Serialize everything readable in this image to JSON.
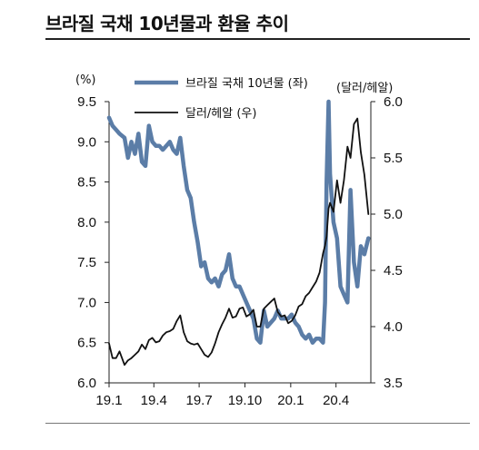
{
  "title": "브라질 국채 10년물과 환율 추이",
  "chart_data": {
    "type": "line",
    "left_axis": {
      "unit": "(%)",
      "min": 6.0,
      "max": 9.5,
      "ticks": [
        "9.5",
        "9.0",
        "8.5",
        "8.0",
        "7.5",
        "7.0",
        "6.5",
        "6.0"
      ]
    },
    "right_axis": {
      "unit": "(달러/헤알)",
      "min": 3.5,
      "max": 6.0,
      "ticks": [
        "6.0",
        "5.5",
        "5.0",
        "4.5",
        "4.0",
        "3.5"
      ]
    },
    "x_ticks": [
      "19.1",
      "19.4",
      "19.7",
      "19.10",
      "20.1",
      "20.4"
    ],
    "x_range": [
      "2019-01-01",
      "2020-06-10"
    ],
    "legend": [
      "브라질 국채 10년물 (좌)",
      "달러/헤알 (우)"
    ],
    "series": [
      {
        "name": "브라질 국채 10년물 (좌)",
        "axis": "left",
        "color": "#5b7da7",
        "points": [
          [
            "2019-01-01",
            9.3
          ],
          [
            "2019-01-08",
            9.2
          ],
          [
            "2019-01-15",
            9.15
          ],
          [
            "2019-01-22",
            9.1
          ],
          [
            "2019-02-01",
            9.05
          ],
          [
            "2019-02-08",
            8.8
          ],
          [
            "2019-02-15",
            9.0
          ],
          [
            "2019-02-22",
            8.85
          ],
          [
            "2019-03-01",
            9.1
          ],
          [
            "2019-03-08",
            8.75
          ],
          [
            "2019-03-15",
            8.7
          ],
          [
            "2019-03-22",
            9.2
          ],
          [
            "2019-03-29",
            9.0
          ],
          [
            "2019-04-05",
            8.95
          ],
          [
            "2019-04-12",
            8.95
          ],
          [
            "2019-04-19",
            8.9
          ],
          [
            "2019-04-26",
            8.95
          ],
          [
            "2019-05-03",
            9.0
          ],
          [
            "2019-05-10",
            8.9
          ],
          [
            "2019-05-17",
            8.85
          ],
          [
            "2019-05-24",
            9.05
          ],
          [
            "2019-05-31",
            8.7
          ],
          [
            "2019-06-07",
            8.4
          ],
          [
            "2019-06-14",
            8.3
          ],
          [
            "2019-06-21",
            8.0
          ],
          [
            "2019-06-28",
            7.75
          ],
          [
            "2019-07-05",
            7.45
          ],
          [
            "2019-07-12",
            7.5
          ],
          [
            "2019-07-19",
            7.3
          ],
          [
            "2019-07-26",
            7.25
          ],
          [
            "2019-08-02",
            7.3
          ],
          [
            "2019-08-09",
            7.2
          ],
          [
            "2019-08-16",
            7.35
          ],
          [
            "2019-08-23",
            7.4
          ],
          [
            "2019-08-30",
            7.6
          ],
          [
            "2019-09-06",
            7.3
          ],
          [
            "2019-09-13",
            7.2
          ],
          [
            "2019-09-20",
            7.2
          ],
          [
            "2019-09-27",
            7.1
          ],
          [
            "2019-10-04",
            7.0
          ],
          [
            "2019-10-11",
            6.9
          ],
          [
            "2019-10-18",
            6.8
          ],
          [
            "2019-10-25",
            6.55
          ],
          [
            "2019-11-01",
            6.5
          ],
          [
            "2019-11-08",
            6.9
          ],
          [
            "2019-11-15",
            6.7
          ],
          [
            "2019-11-22",
            6.75
          ],
          [
            "2019-11-29",
            6.8
          ],
          [
            "2019-12-06",
            6.9
          ],
          [
            "2019-12-13",
            6.8
          ],
          [
            "2019-12-20",
            6.8
          ],
          [
            "2019-12-27",
            6.8
          ],
          [
            "2020-01-03",
            6.85
          ],
          [
            "2020-01-10",
            6.75
          ],
          [
            "2020-01-17",
            6.7
          ],
          [
            "2020-01-24",
            6.6
          ],
          [
            "2020-01-31",
            6.55
          ],
          [
            "2020-02-07",
            6.6
          ],
          [
            "2020-02-14",
            6.5
          ],
          [
            "2020-02-21",
            6.55
          ],
          [
            "2020-02-28",
            6.55
          ],
          [
            "2020-03-06",
            6.5
          ],
          [
            "2020-03-10",
            7.0
          ],
          [
            "2020-03-13",
            8.5
          ],
          [
            "2020-03-17",
            9.5
          ],
          [
            "2020-03-20",
            8.6
          ],
          [
            "2020-03-27",
            8.0
          ],
          [
            "2020-04-03",
            7.8
          ],
          [
            "2020-04-10",
            7.2
          ],
          [
            "2020-04-17",
            7.1
          ],
          [
            "2020-04-24",
            7.0
          ],
          [
            "2020-04-30",
            8.4
          ],
          [
            "2020-05-07",
            7.5
          ],
          [
            "2020-05-14",
            7.2
          ],
          [
            "2020-05-21",
            7.7
          ],
          [
            "2020-05-28",
            7.6
          ],
          [
            "2020-06-05",
            7.8
          ]
        ]
      },
      {
        "name": "달러/헤알 (우)",
        "axis": "right",
        "color": "#111111",
        "points": [
          [
            "2019-01-01",
            3.85
          ],
          [
            "2019-01-08",
            3.72
          ],
          [
            "2019-01-15",
            3.72
          ],
          [
            "2019-01-22",
            3.78
          ],
          [
            "2019-02-01",
            3.66
          ],
          [
            "2019-02-08",
            3.7
          ],
          [
            "2019-02-15",
            3.72
          ],
          [
            "2019-02-22",
            3.75
          ],
          [
            "2019-03-01",
            3.78
          ],
          [
            "2019-03-08",
            3.84
          ],
          [
            "2019-03-15",
            3.8
          ],
          [
            "2019-03-22",
            3.88
          ],
          [
            "2019-03-29",
            3.9
          ],
          [
            "2019-04-05",
            3.86
          ],
          [
            "2019-04-12",
            3.87
          ],
          [
            "2019-04-19",
            3.92
          ],
          [
            "2019-04-26",
            3.95
          ],
          [
            "2019-05-03",
            3.96
          ],
          [
            "2019-05-10",
            3.98
          ],
          [
            "2019-05-17",
            4.05
          ],
          [
            "2019-05-24",
            4.1
          ],
          [
            "2019-05-31",
            3.95
          ],
          [
            "2019-06-07",
            3.87
          ],
          [
            "2019-06-14",
            3.85
          ],
          [
            "2019-06-21",
            3.84
          ],
          [
            "2019-06-28",
            3.85
          ],
          [
            "2019-07-05",
            3.8
          ],
          [
            "2019-07-12",
            3.75
          ],
          [
            "2019-07-19",
            3.73
          ],
          [
            "2019-07-26",
            3.77
          ],
          [
            "2019-08-02",
            3.85
          ],
          [
            "2019-08-09",
            3.95
          ],
          [
            "2019-08-16",
            4.02
          ],
          [
            "2019-08-23",
            4.08
          ],
          [
            "2019-08-30",
            4.16
          ],
          [
            "2019-09-06",
            4.08
          ],
          [
            "2019-09-13",
            4.09
          ],
          [
            "2019-09-20",
            4.16
          ],
          [
            "2019-09-27",
            4.17
          ],
          [
            "2019-10-04",
            4.09
          ],
          [
            "2019-10-11",
            4.11
          ],
          [
            "2019-10-18",
            4.15
          ],
          [
            "2019-10-25",
            4.0
          ],
          [
            "2019-11-01",
            4.0
          ],
          [
            "2019-11-08",
            4.16
          ],
          [
            "2019-11-15",
            4.19
          ],
          [
            "2019-11-22",
            4.22
          ],
          [
            "2019-11-29",
            4.25
          ],
          [
            "2019-12-06",
            4.13
          ],
          [
            "2019-12-13",
            4.09
          ],
          [
            "2019-12-20",
            4.1
          ],
          [
            "2019-12-27",
            4.03
          ],
          [
            "2020-01-03",
            4.05
          ],
          [
            "2020-01-10",
            4.1
          ],
          [
            "2020-01-17",
            4.18
          ],
          [
            "2020-01-24",
            4.2
          ],
          [
            "2020-01-31",
            4.27
          ],
          [
            "2020-02-07",
            4.3
          ],
          [
            "2020-02-14",
            4.35
          ],
          [
            "2020-02-21",
            4.4
          ],
          [
            "2020-02-28",
            4.48
          ],
          [
            "2020-03-06",
            4.65
          ],
          [
            "2020-03-10",
            4.72
          ],
          [
            "2020-03-13",
            4.8
          ],
          [
            "2020-03-17",
            5.05
          ],
          [
            "2020-03-20",
            5.1
          ],
          [
            "2020-03-27",
            5.02
          ],
          [
            "2020-04-03",
            5.3
          ],
          [
            "2020-04-10",
            5.1
          ],
          [
            "2020-04-17",
            5.3
          ],
          [
            "2020-04-24",
            5.6
          ],
          [
            "2020-04-30",
            5.5
          ],
          [
            "2020-05-07",
            5.8
          ],
          [
            "2020-05-14",
            5.85
          ],
          [
            "2020-05-21",
            5.55
          ],
          [
            "2020-05-28",
            5.35
          ],
          [
            "2020-06-05",
            5.0
          ]
        ]
      }
    ]
  }
}
